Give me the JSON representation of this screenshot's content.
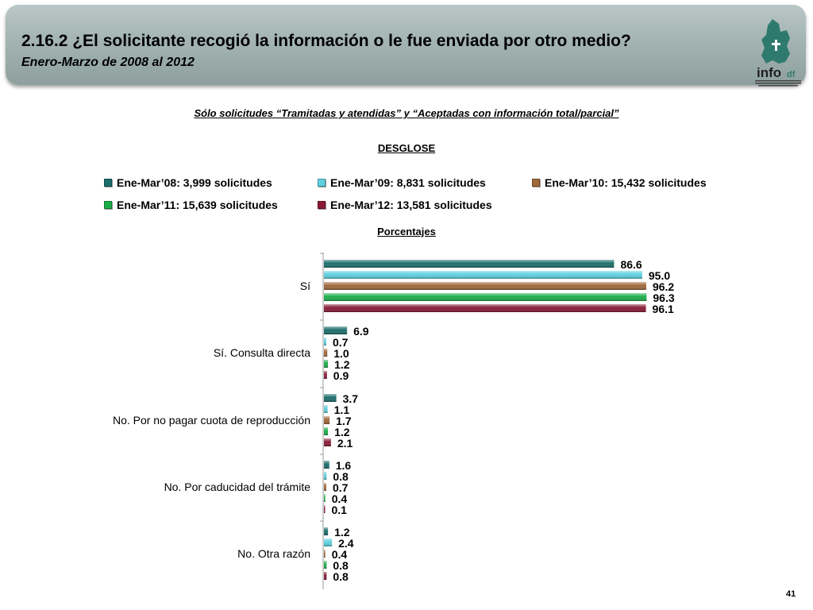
{
  "header": {
    "title": "2.16.2 ¿El solicitante recogió la información o le fue enviada por otro medio?",
    "subtitle": "Enero-Marzo de 2008 al 2012",
    "logo_text": "info df"
  },
  "note": "Sólo solicitudes “Tramitadas y atendidas” y “Aceptadas con información total/parcial”",
  "breakdown_label": "DESGLOSE",
  "units_label": "Porcentajes",
  "page_number": "41",
  "colors": {
    "series": [
      "#1b6f6c",
      "#5fd0df",
      "#a0693a",
      "#1cae4a",
      "#8a1a36"
    ]
  },
  "chart_data": {
    "type": "bar",
    "orientation": "horizontal",
    "title": "",
    "xlabel": "",
    "ylabel": "Porcentajes",
    "xlim": [
      0,
      100
    ],
    "grid": false,
    "legend_position": "top",
    "categories": [
      "Sí",
      "Sí. Consulta directa",
      "No. Por no pagar cuota de reproducción",
      "No. Por caducidad del trámite",
      "No. Otra razón"
    ],
    "series": [
      {
        "name": "Ene-Mar’08: 3,999 solicitudes",
        "values": [
          86.6,
          6.9,
          3.7,
          1.6,
          1.2
        ],
        "labels": [
          "86.6",
          "6.9",
          "3.7",
          "1.6",
          "1.2"
        ]
      },
      {
        "name": "Ene-Mar’09: 8,831 solicitudes",
        "values": [
          95.0,
          0.7,
          1.1,
          0.8,
          2.4
        ],
        "labels": [
          "95.0",
          "0.7",
          "1.1",
          "0.8",
          "2.4"
        ]
      },
      {
        "name": "Ene-Mar’10: 15,432 solicitudes",
        "values": [
          96.2,
          1.0,
          1.7,
          0.7,
          0.4
        ],
        "labels": [
          "96.2",
          "1.0",
          "1.7",
          "0.7",
          "0.4"
        ]
      },
      {
        "name": "Ene-Mar’11: 15,639 solicitudes",
        "values": [
          96.3,
          1.2,
          1.2,
          0.4,
          0.8
        ],
        "labels": [
          "96.3",
          "1.2",
          "1.2",
          "0.4",
          "0.8"
        ]
      },
      {
        "name": "Ene-Mar’12: 13,581 solicitudes",
        "values": [
          96.1,
          0.9,
          2.1,
          0.1,
          0.8
        ],
        "labels": [
          "96.1",
          "0.9",
          "2.1",
          "0.1",
          "0.8"
        ]
      }
    ]
  }
}
